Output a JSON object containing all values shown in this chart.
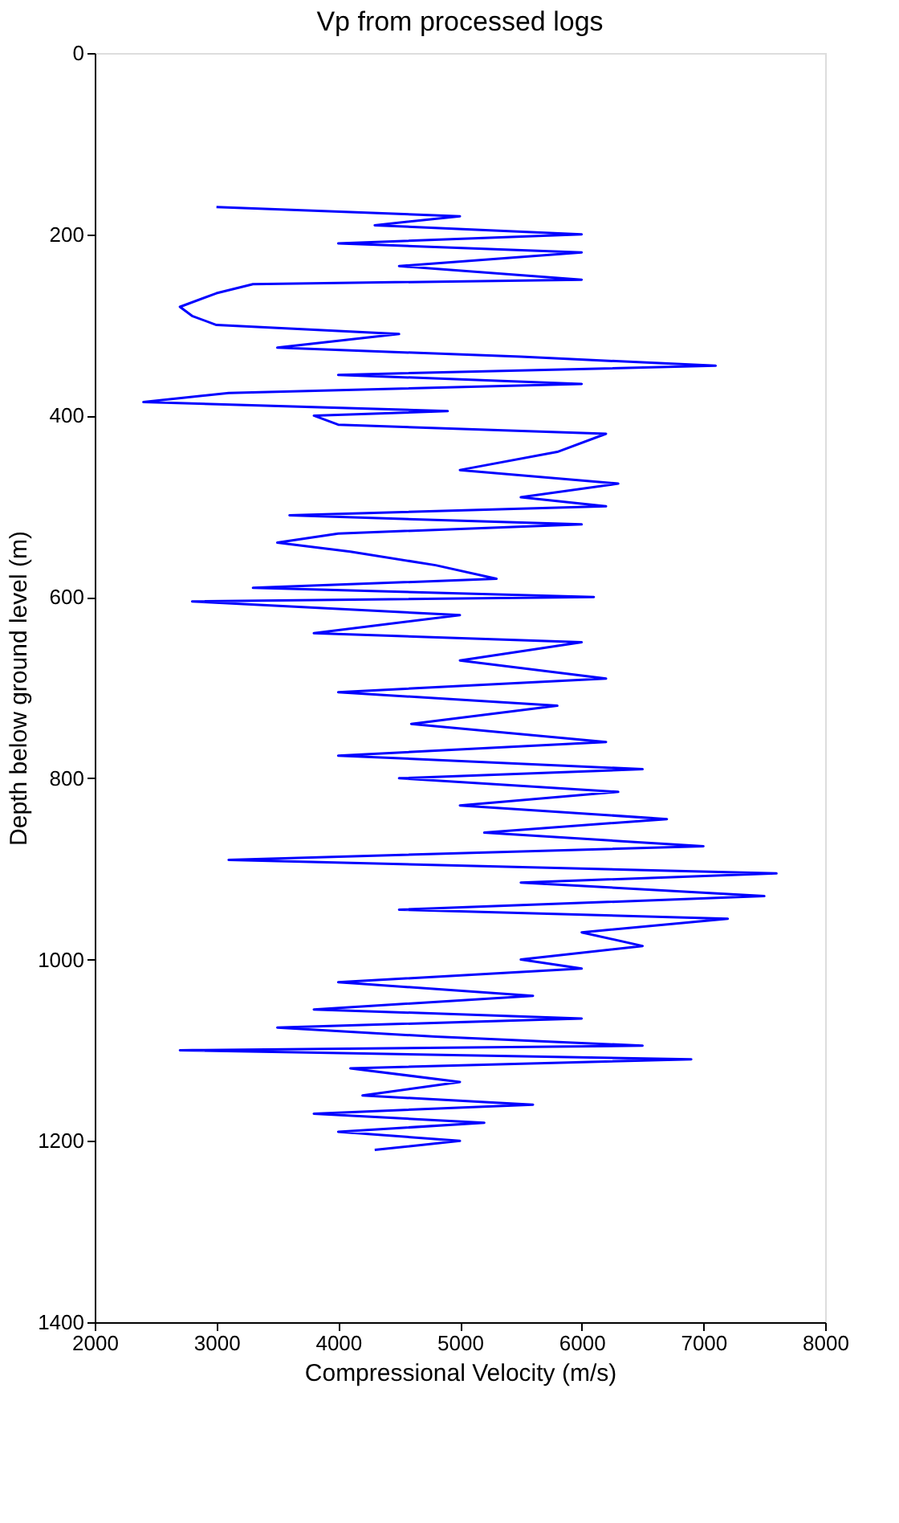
{
  "chart_data": {
    "type": "line",
    "title": "Vp from processed logs",
    "xlabel": "Compressional Velocity (m/s)",
    "ylabel": "Depth below ground level (m)",
    "xlim": [
      2000,
      8000
    ],
    "xticks": [
      2000,
      3000,
      4000,
      5000,
      6000,
      7000,
      8000
    ],
    "ylim": [
      1400,
      0
    ],
    "yticks": [
      0,
      200,
      400,
      600,
      800,
      1000,
      1200,
      1400
    ],
    "grid": false,
    "marker": "none",
    "line_style": "solid",
    "series": [
      {
        "color": "#0000ff",
        "x": [
          3000,
          5000,
          4300,
          6000,
          4000,
          6000,
          4500,
          6000,
          3300,
          3000,
          2700,
          2800,
          3000,
          4500,
          3500,
          5500,
          7100,
          4000,
          6000,
          3100,
          2400,
          4900,
          3800,
          4000,
          6200,
          5800,
          5000,
          6300,
          5500,
          6200,
          3600,
          6000,
          4000,
          3500,
          4100,
          4800,
          5300,
          3300,
          6100,
          2800,
          5000,
          3800,
          6000,
          5000,
          6200,
          4000,
          5800,
          4600,
          6200,
          4000,
          6500,
          4500,
          6300,
          5000,
          6700,
          5200,
          7000,
          3100,
          7600,
          5500,
          7500,
          4500,
          7200,
          6000,
          6500,
          5500,
          6000,
          4000,
          5600,
          3800,
          6000,
          3500,
          4800,
          6500,
          2700,
          6900,
          4100,
          5000,
          4200,
          5600,
          3800,
          5200,
          4000,
          5000,
          4300
        ],
        "values": [
          170,
          180,
          190,
          200,
          210,
          220,
          235,
          250,
          255,
          265,
          280,
          290,
          300,
          310,
          325,
          335,
          345,
          355,
          365,
          375,
          385,
          395,
          400,
          410,
          420,
          440,
          460,
          475,
          490,
          500,
          510,
          520,
          530,
          540,
          550,
          565,
          580,
          590,
          600,
          605,
          620,
          640,
          650,
          670,
          690,
          705,
          720,
          740,
          760,
          775,
          790,
          800,
          815,
          830,
          845,
          860,
          875,
          890,
          905,
          915,
          930,
          945,
          955,
          970,
          985,
          1000,
          1010,
          1025,
          1040,
          1055,
          1065,
          1075,
          1085,
          1095,
          1100,
          1110,
          1120,
          1135,
          1150,
          1160,
          1170,
          1180,
          1190,
          1200,
          1210
        ]
      }
    ]
  }
}
